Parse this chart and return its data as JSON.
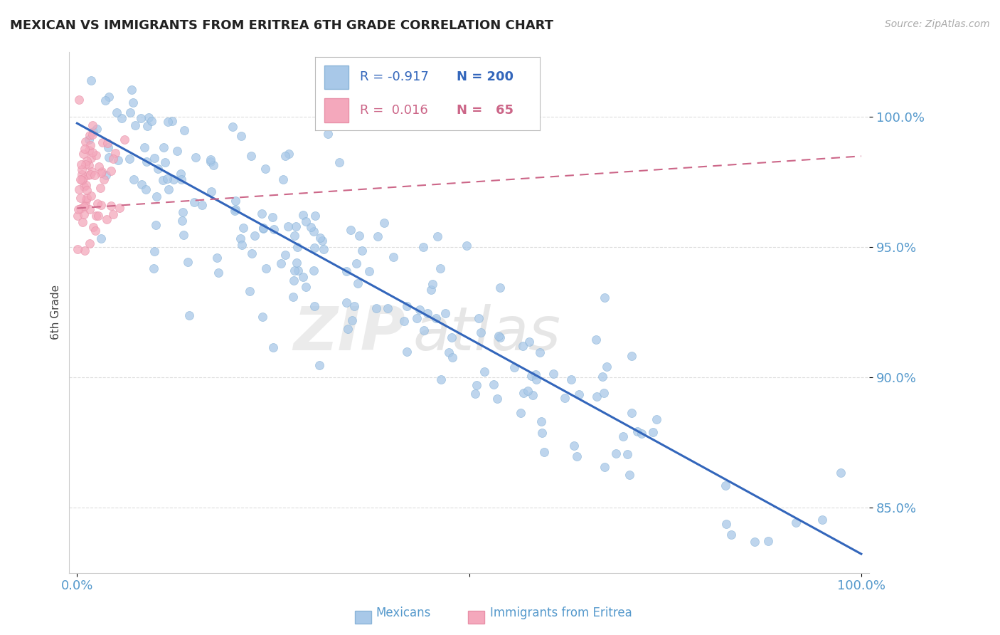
{
  "title": "MEXICAN VS IMMIGRANTS FROM ERITREA 6TH GRADE CORRELATION CHART",
  "source_text": "Source: ZipAtlas.com",
  "ylabel": "6th Grade",
  "watermark_zip": "ZIP",
  "watermark_atlas": "atlas",
  "legend": {
    "blue_R": "-0.917",
    "blue_N": "200",
    "pink_R": "0.016",
    "pink_N": "65"
  },
  "ytick_labels": [
    "85.0%",
    "90.0%",
    "95.0%",
    "100.0%"
  ],
  "ytick_values": [
    0.85,
    0.9,
    0.95,
    1.0
  ],
  "xlim": [
    -0.01,
    1.01
  ],
  "ylim": [
    0.825,
    1.025
  ],
  "blue_scatter_color": "#a8c8e8",
  "blue_scatter_edge": "#8ab4d8",
  "blue_line_color": "#3366bb",
  "pink_scatter_color": "#f4a8bc",
  "pink_scatter_edge": "#e890a8",
  "pink_line_color": "#cc6688",
  "axis_color": "#5599cc",
  "title_color": "#222222",
  "ylabel_color": "#444444",
  "source_color": "#aaaaaa",
  "grid_color": "#dddddd",
  "background_color": "#ffffff",
  "legend_border_color": "#bbbbbb",
  "watermark_zip_color": "#cccccc",
  "watermark_atlas_color": "#bbbbbb"
}
